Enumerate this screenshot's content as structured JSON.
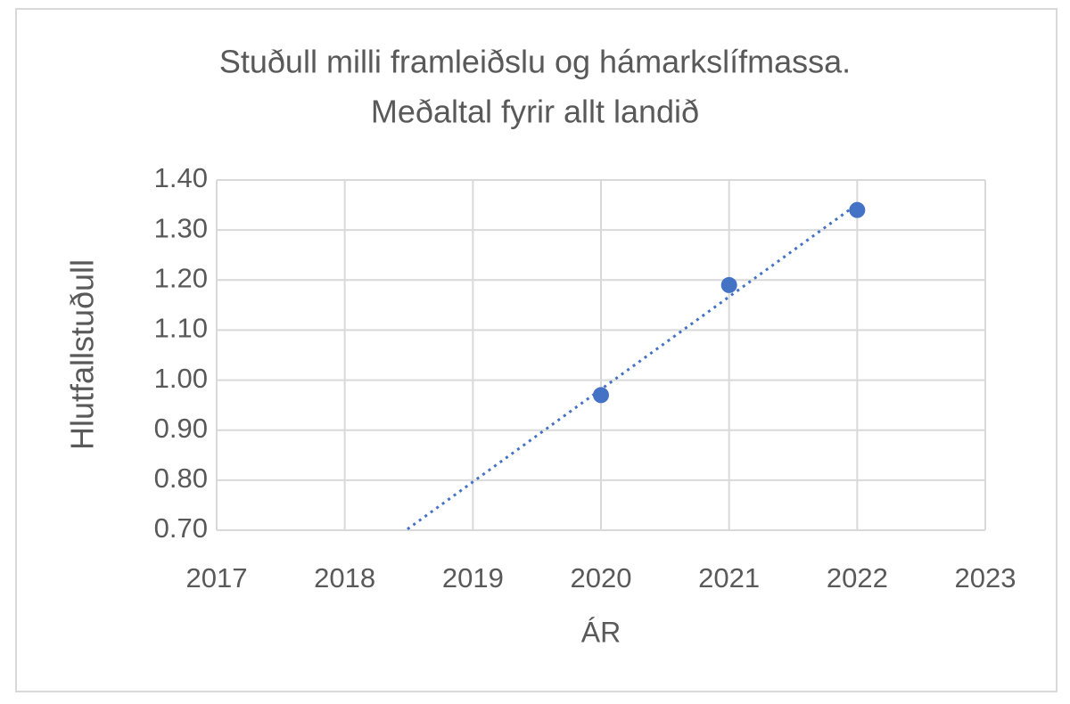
{
  "chart_data": {
    "type": "scatter",
    "title": [
      "Stuðull milli framleiðslu og hámarkslífmassa.",
      "Meðaltal fyrir allt landið"
    ],
    "x_label": "ÁR",
    "y_label": "Hlutfallstuðull",
    "x": [
      2020,
      2021,
      2022
    ],
    "values": [
      0.97,
      1.19,
      1.34
    ],
    "color": "#4472c4",
    "trendline": true,
    "xlim": [
      2017,
      2023
    ],
    "xticks": [
      2017,
      2018,
      2019,
      2020,
      2021,
      2022,
      2023
    ],
    "ylim": [
      0.7,
      1.4
    ],
    "yticks": [
      {
        "value": 0.7,
        "label": "0.70"
      },
      {
        "value": 0.8,
        "label": "0.80"
      },
      {
        "value": 0.9,
        "label": "0.90"
      },
      {
        "value": 1.0,
        "label": "1.00"
      },
      {
        "value": 1.1,
        "label": "1.10"
      },
      {
        "value": 1.2,
        "label": "1.20"
      },
      {
        "value": 1.3,
        "label": "1.30"
      },
      {
        "value": 1.4,
        "label": "1.40"
      }
    ],
    "grid": true
  }
}
